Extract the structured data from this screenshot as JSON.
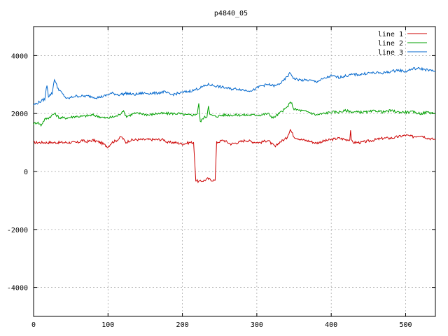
{
  "chart_data": {
    "type": "line",
    "title": "p4840_05",
    "xlabel": "",
    "ylabel": "",
    "xlim": [
      0,
      540
    ],
    "ylim": [
      -5000,
      5000
    ],
    "xticks": [
      0,
      100,
      200,
      300,
      400,
      500
    ],
    "yticks": [
      -4000,
      -2000,
      0,
      2000,
      4000
    ],
    "grid": true,
    "legend_position": "top-right",
    "series": [
      {
        "name": "line 1",
        "color": "#cc0000",
        "points": [
          [
            0,
            1000
          ],
          [
            55,
            1000
          ],
          [
            60,
            1000
          ],
          [
            65,
            1080
          ],
          [
            70,
            1020
          ],
          [
            80,
            1080
          ],
          [
            90,
            1000
          ],
          [
            100,
            850
          ],
          [
            105,
            1000
          ],
          [
            112,
            1080
          ],
          [
            118,
            1200
          ],
          [
            124,
            1000
          ],
          [
            130,
            1080
          ],
          [
            140,
            1100
          ],
          [
            150,
            1100
          ],
          [
            160,
            1100
          ],
          [
            170,
            1100
          ],
          [
            175,
            1100
          ],
          [
            180,
            1000
          ],
          [
            190,
            1000
          ],
          [
            200,
            950
          ],
          [
            210,
            1000
          ],
          [
            215,
            1000
          ],
          [
            218,
            -300
          ],
          [
            222,
            -350
          ],
          [
            228,
            -320
          ],
          [
            234,
            -250
          ],
          [
            240,
            -300
          ],
          [
            244,
            -300
          ],
          [
            246,
            1000
          ],
          [
            255,
            1080
          ],
          [
            265,
            950
          ],
          [
            275,
            1000
          ],
          [
            285,
            1080
          ],
          [
            295,
            1020
          ],
          [
            305,
            1000
          ],
          [
            315,
            1080
          ],
          [
            320,
            950
          ],
          [
            325,
            850
          ],
          [
            330,
            1000
          ],
          [
            340,
            1150
          ],
          [
            345,
            1450
          ],
          [
            350,
            1200
          ],
          [
            360,
            1100
          ],
          [
            370,
            1050
          ],
          [
            380,
            980
          ],
          [
            390,
            1050
          ],
          [
            400,
            1100
          ],
          [
            410,
            1150
          ],
          [
            420,
            1100
          ],
          [
            425,
            1100
          ],
          [
            426,
            1450
          ],
          [
            427,
            1050
          ],
          [
            430,
            1000
          ],
          [
            440,
            1000
          ],
          [
            450,
            1050
          ],
          [
            460,
            1100
          ],
          [
            470,
            1150
          ],
          [
            480,
            1150
          ],
          [
            490,
            1200
          ],
          [
            500,
            1250
          ],
          [
            510,
            1200
          ],
          [
            520,
            1250
          ],
          [
            530,
            1150
          ],
          [
            540,
            1100
          ]
        ]
      },
      {
        "name": "line 2",
        "color": "#00a000",
        "points": [
          [
            0,
            1650
          ],
          [
            5,
            1700
          ],
          [
            10,
            1600
          ],
          [
            15,
            1800
          ],
          [
            20,
            1850
          ],
          [
            28,
            2000
          ],
          [
            35,
            1850
          ],
          [
            45,
            1850
          ],
          [
            55,
            1900
          ],
          [
            65,
            1900
          ],
          [
            80,
            1950
          ],
          [
            95,
            1850
          ],
          [
            100,
            1850
          ],
          [
            110,
            1900
          ],
          [
            115,
            1950
          ],
          [
            120,
            2100
          ],
          [
            125,
            1900
          ],
          [
            135,
            2000
          ],
          [
            145,
            2000
          ],
          [
            155,
            1950
          ],
          [
            165,
            2000
          ],
          [
            175,
            2000
          ],
          [
            185,
            2000
          ],
          [
            195,
            2000
          ],
          [
            205,
            1950
          ],
          [
            215,
            1950
          ],
          [
            220,
            2000
          ],
          [
            222,
            2350
          ],
          [
            224,
            1700
          ],
          [
            228,
            1850
          ],
          [
            233,
            1900
          ],
          [
            235,
            2300
          ],
          [
            237,
            1950
          ],
          [
            245,
            1900
          ],
          [
            255,
            1950
          ],
          [
            265,
            1950
          ],
          [
            275,
            1950
          ],
          [
            285,
            1950
          ],
          [
            295,
            1950
          ],
          [
            305,
            1950
          ],
          [
            315,
            2000
          ],
          [
            322,
            1850
          ],
          [
            330,
            2000
          ],
          [
            340,
            2200
          ],
          [
            346,
            2400
          ],
          [
            350,
            2150
          ],
          [
            360,
            2100
          ],
          [
            370,
            2050
          ],
          [
            380,
            1950
          ],
          [
            390,
            2000
          ],
          [
            400,
            2050
          ],
          [
            410,
            2050
          ],
          [
            420,
            2100
          ],
          [
            430,
            2050
          ],
          [
            440,
            2050
          ],
          [
            450,
            2050
          ],
          [
            460,
            2100
          ],
          [
            470,
            2050
          ],
          [
            480,
            2100
          ],
          [
            490,
            2050
          ],
          [
            500,
            2050
          ],
          [
            510,
            2050
          ],
          [
            520,
            2000
          ],
          [
            530,
            2050
          ],
          [
            540,
            2000
          ]
        ]
      },
      {
        "name": "line 3",
        "color": "#0066cc",
        "points": [
          [
            0,
            2300
          ],
          [
            8,
            2400
          ],
          [
            15,
            2500
          ],
          [
            18,
            3000
          ],
          [
            20,
            2600
          ],
          [
            25,
            2700
          ],
          [
            28,
            3200
          ],
          [
            32,
            2900
          ],
          [
            38,
            2700
          ],
          [
            45,
            2500
          ],
          [
            55,
            2600
          ],
          [
            65,
            2600
          ],
          [
            75,
            2600
          ],
          [
            85,
            2550
          ],
          [
            95,
            2600
          ],
          [
            105,
            2700
          ],
          [
            115,
            2650
          ],
          [
            125,
            2700
          ],
          [
            135,
            2650
          ],
          [
            145,
            2700
          ],
          [
            155,
            2700
          ],
          [
            165,
            2700
          ],
          [
            175,
            2750
          ],
          [
            185,
            2650
          ],
          [
            195,
            2700
          ],
          [
            205,
            2750
          ],
          [
            215,
            2800
          ],
          [
            225,
            2900
          ],
          [
            235,
            3000
          ],
          [
            245,
            2950
          ],
          [
            255,
            2900
          ],
          [
            265,
            2850
          ],
          [
            275,
            2850
          ],
          [
            285,
            2800
          ],
          [
            295,
            2800
          ],
          [
            305,
            2950
          ],
          [
            315,
            3000
          ],
          [
            325,
            2950
          ],
          [
            335,
            3100
          ],
          [
            345,
            3400
          ],
          [
            350,
            3200
          ],
          [
            360,
            3150
          ],
          [
            370,
            3150
          ],
          [
            380,
            3100
          ],
          [
            390,
            3200
          ],
          [
            400,
            3300
          ],
          [
            410,
            3250
          ],
          [
            420,
            3300
          ],
          [
            430,
            3350
          ],
          [
            440,
            3350
          ],
          [
            450,
            3400
          ],
          [
            460,
            3400
          ],
          [
            470,
            3400
          ],
          [
            480,
            3450
          ],
          [
            490,
            3500
          ],
          [
            500,
            3450
          ],
          [
            510,
            3550
          ],
          [
            520,
            3550
          ],
          [
            530,
            3500
          ],
          [
            540,
            3450
          ]
        ]
      }
    ]
  }
}
